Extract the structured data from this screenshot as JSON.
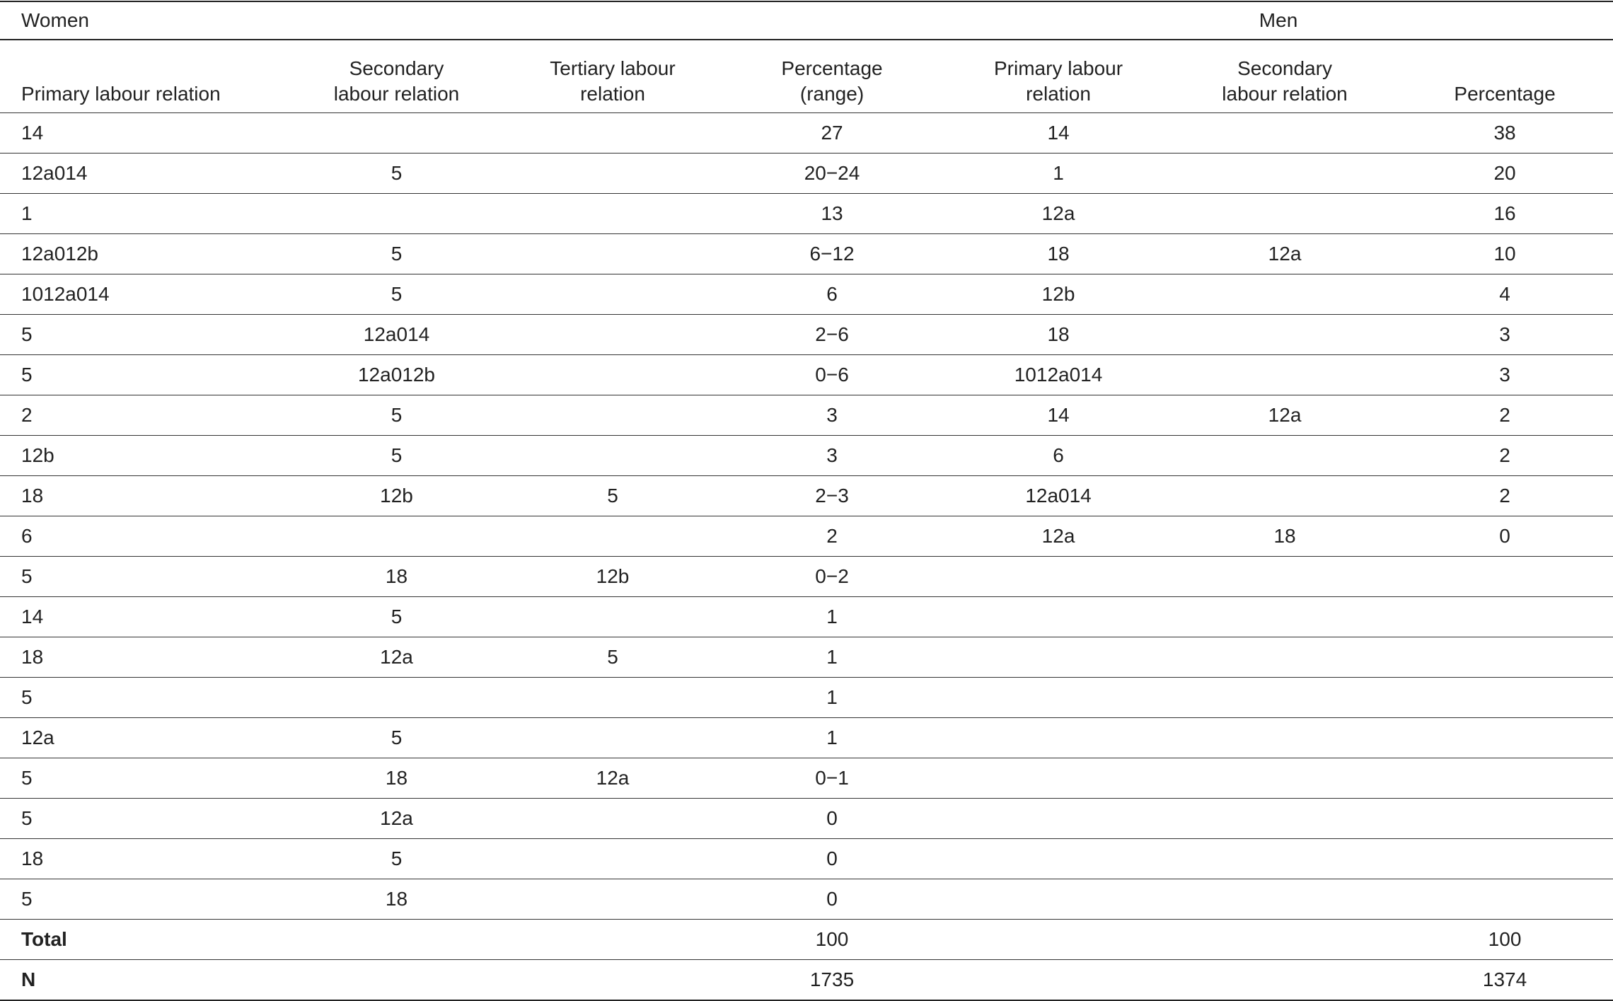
{
  "table": {
    "group_headers": [
      "Women",
      "Men"
    ],
    "columns": [
      "Primary labour relation",
      "Secondary labour relation",
      "Tertiary labour relation",
      "Percentage (range)",
      "Primary labour relation",
      "Secondary labour relation",
      "Percentage"
    ],
    "rows": [
      [
        "14",
        null,
        null,
        "27",
        "14",
        null,
        "38"
      ],
      [
        "12a014",
        "5",
        null,
        "20−24",
        "1",
        null,
        "20"
      ],
      [
        "1",
        null,
        null,
        "13",
        "12a",
        null,
        "16"
      ],
      [
        "12a012b",
        "5",
        null,
        "6−12",
        "18",
        "12a",
        "10"
      ],
      [
        "1012a014",
        "5",
        null,
        "6",
        "12b",
        null,
        "4"
      ],
      [
        "5",
        "12a014",
        null,
        "2−6",
        "18",
        null,
        "3"
      ],
      [
        "5",
        "12a012b",
        null,
        "0−6",
        "1012a014",
        null,
        "3"
      ],
      [
        "2",
        "5",
        null,
        "3",
        "14",
        "12a",
        "2"
      ],
      [
        "12b",
        "5",
        null,
        "3",
        "6",
        null,
        "2"
      ],
      [
        "18",
        "12b",
        "5",
        "2−3",
        "12a014",
        null,
        "2"
      ],
      [
        "6",
        null,
        null,
        "2",
        "12a",
        "18",
        "0"
      ],
      [
        "5",
        "18",
        "12b",
        "0−2",
        null,
        null,
        null
      ],
      [
        "14",
        "5",
        null,
        "1",
        null,
        null,
        null
      ],
      [
        "18",
        "12a",
        "5",
        "1",
        null,
        null,
        null
      ],
      [
        "5",
        null,
        null,
        "1",
        null,
        null,
        null
      ],
      [
        "12a",
        "5",
        null,
        "1",
        null,
        null,
        null
      ],
      [
        "5",
        "18",
        "12a",
        "0−1",
        null,
        null,
        null
      ],
      [
        "5",
        "12a",
        null,
        "0",
        null,
        null,
        null
      ],
      [
        "18",
        "5",
        null,
        "0",
        null,
        null,
        null
      ],
      [
        "5",
        "18",
        null,
        "0",
        null,
        null,
        null
      ]
    ],
    "footer_rows": [
      [
        "Total",
        null,
        null,
        "100",
        null,
        null,
        "100"
      ],
      [
        "N",
        null,
        null,
        "1735",
        null,
        null,
        "1374"
      ]
    ]
  }
}
